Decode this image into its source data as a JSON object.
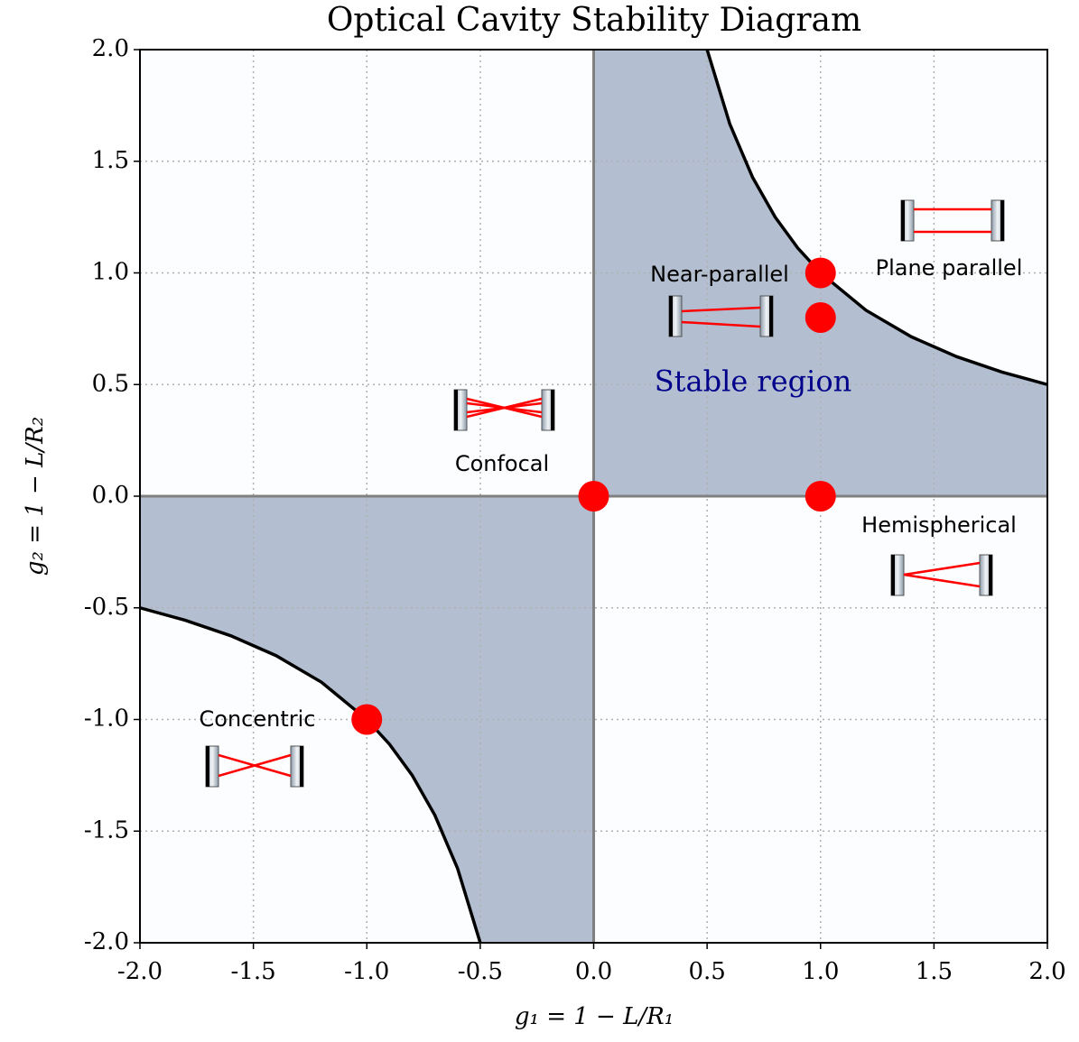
{
  "chart_data": {
    "type": "scatter",
    "title": "Optical Cavity Stability Diagram",
    "xlabel": "g₁ = 1 − L/R₁",
    "ylabel": "g₂ = 1 − L/R₂",
    "xlim": [
      -2,
      2
    ],
    "ylim": [
      -2,
      2
    ],
    "xticks": [
      {
        "value": -2,
        "label": "-2.0"
      },
      -1.5,
      {
        "value": -1,
        "label": "-1.0"
      },
      -0.5,
      {
        "value": 0,
        "label": "0.0"
      },
      0.5,
      {
        "value": 1,
        "label": "1.0"
      },
      1.5,
      {
        "value": 2,
        "label": "2.0"
      }
    ],
    "yticks": [
      {
        "value": -2,
        "label": "-2.0"
      },
      -1.5,
      {
        "value": -1,
        "label": "-1.0"
      },
      -0.5,
      {
        "value": 0,
        "label": "0.0"
      },
      0.5,
      {
        "value": 1,
        "label": "1.0"
      },
      1.5,
      {
        "value": 2,
        "label": "2.0"
      }
    ],
    "grid": true,
    "region_color": "#b3bfd1",
    "boundary_color": "#000000",
    "boundary": [
      {
        "x": [
          0.5,
          0.6,
          0.7,
          0.8,
          0.9,
          1,
          1.2,
          1.4,
          1.6,
          1.8,
          2
        ],
        "values": [
          2,
          1.667,
          1.429,
          1.25,
          1.111,
          1,
          0.833,
          0.714,
          0.625,
          0.556,
          0.5
        ]
      },
      {
        "x": [
          -2,
          -1.8,
          -1.6,
          -1.4,
          -1.2,
          -1,
          -0.9,
          -0.8,
          -0.7,
          -0.6,
          -0.5
        ],
        "values": [
          -0.5,
          -0.556,
          -0.625,
          -0.714,
          -0.833,
          -1,
          -1.111,
          -1.25,
          -1.429,
          -1.667,
          -2
        ]
      }
    ],
    "series": [
      {
        "color": "#ff0000",
        "x": [
          -1,
          0,
          1,
          1,
          1
        ],
        "values": [
          -1,
          0,
          0,
          0.8,
          1
        ]
      }
    ],
    "annotations": [
      "Near-parallel",
      "Plane parallel",
      "Confocal",
      "Hemispherical",
      "Concentric",
      "Stable region"
    ]
  }
}
